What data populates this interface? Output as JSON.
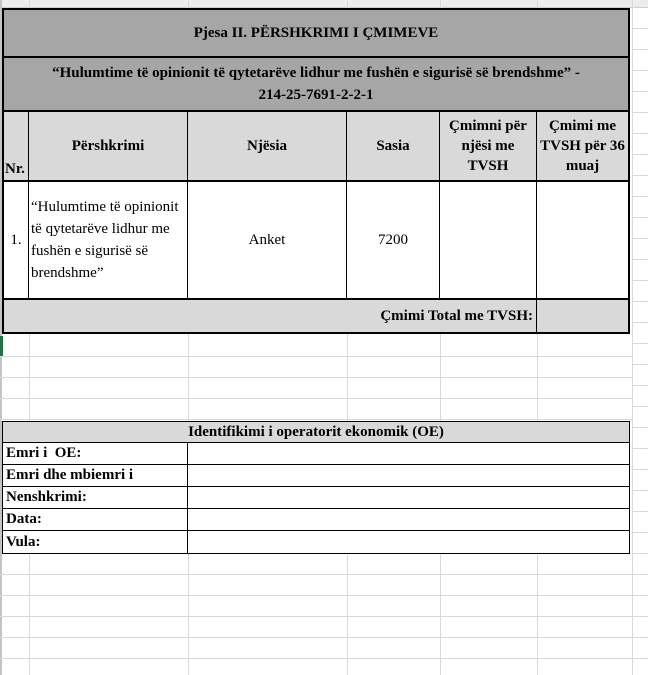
{
  "price_section": {
    "title": "Pjesa II. PËRSHKRIMI I ÇMIMEVE",
    "subtitle_line1": "“Hulumtime të opinionit të qytetarëve lidhur me fushën e sigurisë së brendshme” -",
    "subtitle_line2": "214-25-7691-2-2-1",
    "columns": {
      "nr": "Nr.",
      "pershkrimi": "Përshkrimi",
      "njesia": "Njësia",
      "sasia": "Sasia",
      "cmimi_njesi": "Çmimni për njësi me TVSH",
      "cmimi_36": "Çmimi me TVSH për 36 muaj"
    },
    "row1": {
      "nr": "1.",
      "pershkrimi": "“Hulumtime të opinionit të qytetarëve lidhur me fushën e sigurisë së brendshme”",
      "njesia": "Anket",
      "sasia": "7200",
      "cmimi_njesi": "",
      "cmimi_36": ""
    },
    "total_label": "Çmimi Total me TVSH:",
    "total_value": ""
  },
  "oe_section": {
    "header": "Identifikimi i operatorit ekonomik (OE)",
    "fields": [
      {
        "label": "Emri i  OE:",
        "value": ""
      },
      {
        "label": "Emri dhe mbiemri i",
        "value": ""
      },
      {
        "label": "Nenshkrimi:",
        "value": ""
      },
      {
        "label": "Data:",
        "value": ""
      },
      {
        "label": "Vula:",
        "value": ""
      }
    ]
  },
  "colors": {
    "title_band_gray": "#a6a6a6",
    "header_cell_gray": "#d9d9d9",
    "gridline_gray": "#d8d8d8",
    "active_cell_green": "#217346",
    "border_black": "#000000"
  }
}
